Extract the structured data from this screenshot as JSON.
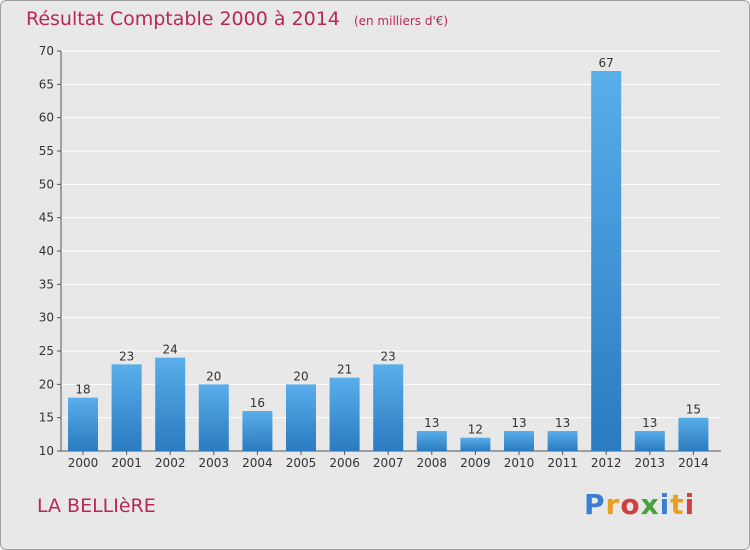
{
  "chart_data": {
    "type": "bar",
    "title": "Résultat Comptable 2000 à 2014",
    "subtitle": "(en milliers d'€)",
    "categories": [
      "2000",
      "2001",
      "2002",
      "2003",
      "2004",
      "2005",
      "2006",
      "2007",
      "2008",
      "2009",
      "2010",
      "2011",
      "2012",
      "2013",
      "2014"
    ],
    "values": [
      18,
      23,
      24,
      20,
      16,
      20,
      21,
      23,
      13,
      12,
      13,
      13,
      67,
      13,
      15
    ],
    "ylim": [
      10,
      70
    ],
    "yticks": [
      10,
      15,
      20,
      25,
      30,
      35,
      40,
      45,
      50,
      55,
      60,
      65,
      70
    ],
    "grid": true,
    "xlabel": "",
    "ylabel": ""
  },
  "footer": {
    "commune": "LA BELLIèRE",
    "logo": "Proxiti"
  },
  "colors": {
    "title": "#b8275a",
    "bar_light": "#5aaeea",
    "bar_dark": "#2a7bc0",
    "grid": "#ffffff",
    "background": "#e8e8e8"
  }
}
